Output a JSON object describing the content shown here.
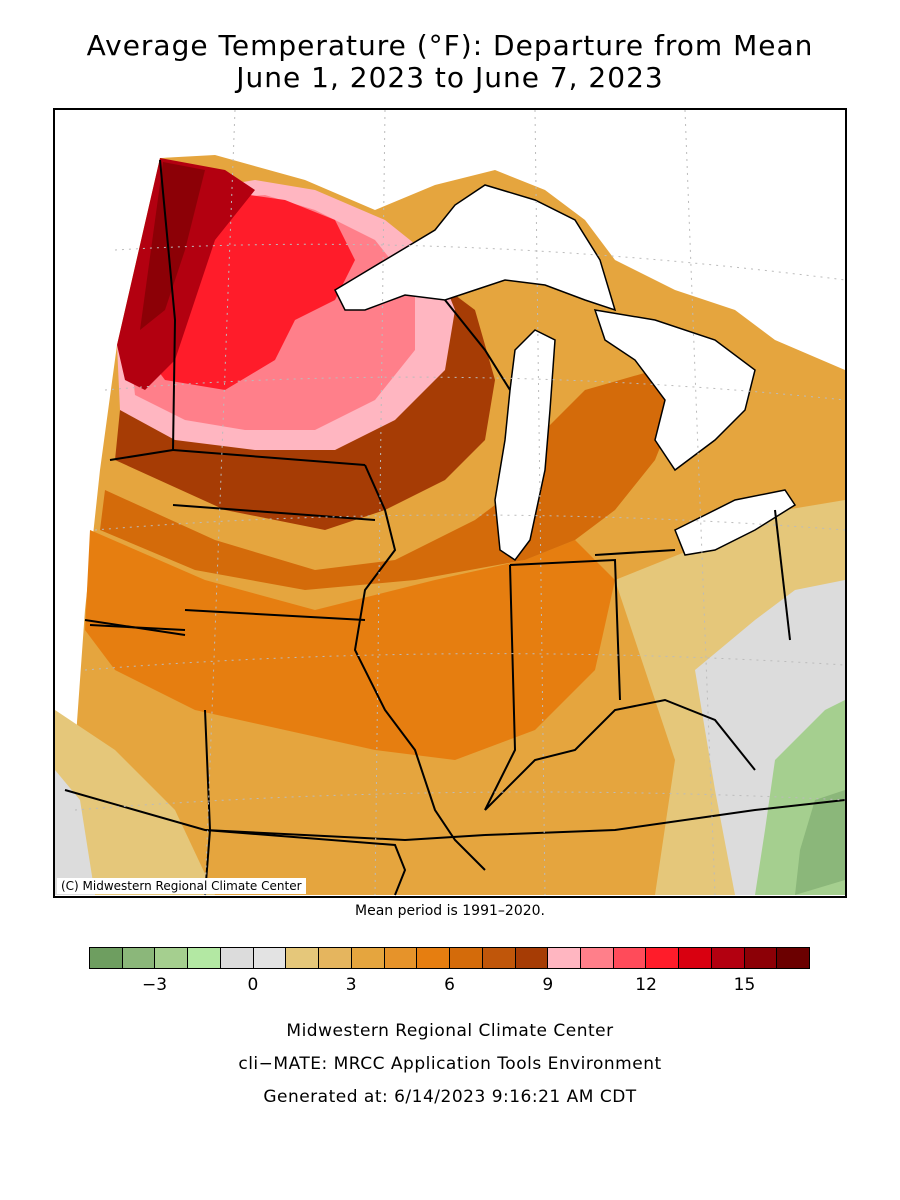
{
  "title_line1": "Average Temperature (°F): Departure from Mean",
  "title_line2": "June 1, 2023 to June 7, 2023",
  "copyright": "(C) Midwestern Regional Climate Center",
  "mean_note": "Mean period is 1991–2020.",
  "legend": {
    "colors": [
      "#6e9e60",
      "#8bb77a",
      "#a5cf8f",
      "#b3e8a3",
      "#dcdcdc",
      "#e3e3e3",
      "#e5c77a",
      "#e5b55e",
      "#e5a53e",
      "#e6932a",
      "#e67e10",
      "#d46b0a",
      "#c0560a",
      "#a63c05",
      "#ffb6c1",
      "#ff7f8a",
      "#ff4b5a",
      "#ff1c2a",
      "#d90010",
      "#b30010",
      "#8c0006",
      "#6b0000"
    ],
    "tick_labels": [
      "−3",
      "0",
      "3",
      "6",
      "9",
      "12",
      "15"
    ]
  },
  "footer_line1": "Midwestern Regional Climate Center",
  "footer_line2": "cli−MATE: MRCC Application Tools Environment",
  "footer_line3": "Generated at: 6/14/2023 9:16:21 AM CDT"
}
